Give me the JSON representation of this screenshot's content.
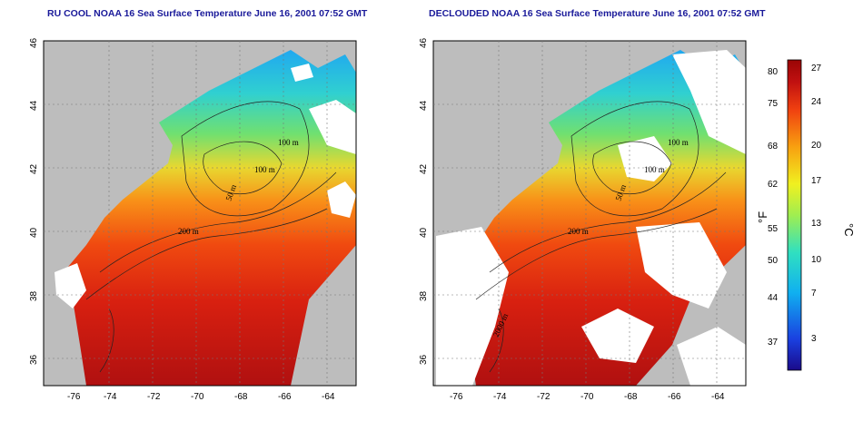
{
  "panels": [
    {
      "title": "RU COOL NOAA 16 Sea Surface Temperature June 16, 2001 07:52 GMT"
    },
    {
      "title": "DECLOUDED NOAA 16 Sea Surface Temperature June 16, 2001 07:52 GMT"
    }
  ],
  "axes": {
    "lon_ticks": [
      "-76",
      "-74",
      "-72",
      "-70",
      "-68",
      "-66",
      "-64"
    ],
    "lat_ticks": [
      "46",
      "44",
      "42",
      "40",
      "38",
      "36"
    ]
  },
  "contour_labels": [
    "100 m",
    "100 m",
    "50 m",
    "200 m",
    "2000 m"
  ],
  "colorbar": {
    "fahrenheit_label": "°F",
    "celsius_label": "°C",
    "fahrenheit_ticks": [
      "80",
      "75",
      "68",
      "62",
      "55",
      "50",
      "44",
      "37"
    ],
    "celsius_ticks": [
      "27",
      "24",
      "20",
      "17",
      "13",
      "10",
      "7",
      "3"
    ],
    "colors": [
      "#1a0a8a",
      "#1a40e0",
      "#10b0f0",
      "#30e0c0",
      "#a0ee50",
      "#f0f020",
      "#f8a010",
      "#f04010",
      "#c01010",
      "#9a0505"
    ]
  }
}
